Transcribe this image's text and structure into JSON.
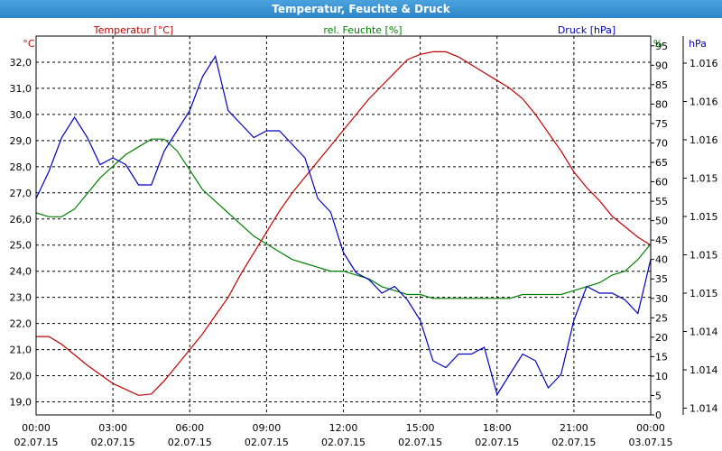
{
  "window": {
    "title": "Temperatur, Feuchte & Druck"
  },
  "colors": {
    "temperature": "#c00000",
    "humidity": "#008000",
    "pressure": "#0000c0",
    "grid": "#000000",
    "text": "#000000"
  },
  "chart_data": {
    "type": "line",
    "title": "Temperatur, Feuchte & Druck",
    "xlim": [
      0,
      24
    ],
    "x_ticks": [
      {
        "time": "00:00",
        "date": "02.07.15"
      },
      {
        "time": "03:00",
        "date": "02.07.15"
      },
      {
        "time": "06:00",
        "date": "02.07.15"
      },
      {
        "time": "09:00",
        "date": "02.07.15"
      },
      {
        "time": "12:00",
        "date": "02.07.15"
      },
      {
        "time": "15:00",
        "date": "02.07.15"
      },
      {
        "time": "18:00",
        "date": "02.07.15"
      },
      {
        "time": "21:00",
        "date": "02.07.15"
      },
      {
        "time": "00:00",
        "date": "03.07.15"
      }
    ],
    "axes": {
      "left": {
        "label": "Temperatur [°C]",
        "unit": "°C",
        "ylim": [
          18.5,
          33.0
        ],
        "ticks": [
          "19,0",
          "20,0",
          "21,0",
          "22,0",
          "23,0",
          "24,0",
          "25,0",
          "26,0",
          "27,0",
          "28,0",
          "29,0",
          "30,0",
          "31,0",
          "32,0"
        ]
      },
      "mid": {
        "label": "rel. Feuchte [%]",
        "unit": "%",
        "ylim": [
          0,
          97.5
        ],
        "ticks": [
          "0",
          "5",
          "10",
          "15",
          "20",
          "25",
          "30",
          "35",
          "40",
          "45",
          "50",
          "55",
          "60",
          "65",
          "70",
          "75",
          "80",
          "85",
          "90",
          "95"
        ]
      },
      "right": {
        "label": "Druck [hPa]",
        "unit": "hPa",
        "ylim": [
          1013.7,
          1016.5
        ],
        "ticks": [
          "1.014",
          "1.014",
          "1.014",
          "1.015",
          "1.015",
          "1.015",
          "1.015",
          "1.016",
          "1.016",
          "1.016"
        ]
      }
    },
    "grid": true,
    "series": [
      {
        "name": "Temperatur [°C]",
        "axis": "left",
        "x": [
          0,
          0.5,
          1,
          1.5,
          2,
          3,
          4,
          4.5,
          5,
          5.5,
          6,
          6.5,
          7,
          7.5,
          8,
          8.5,
          9,
          9.5,
          10,
          10.5,
          11,
          11.5,
          12,
          12.5,
          13,
          13.5,
          14,
          14.5,
          15,
          15.5,
          16,
          16.5,
          17,
          17.5,
          18,
          18.5,
          19,
          19.5,
          20,
          20.5,
          21,
          21.5,
          22,
          22.5,
          23,
          23.5,
          24
        ],
        "values": [
          21.5,
          21.5,
          21.2,
          20.8,
          20.4,
          19.7,
          19.25,
          19.3,
          19.8,
          20.4,
          21.0,
          21.6,
          22.3,
          23.0,
          23.9,
          24.7,
          25.5,
          26.3,
          27.0,
          27.6,
          28.2,
          28.8,
          29.4,
          30.0,
          30.6,
          31.1,
          31.6,
          32.1,
          32.3,
          32.4,
          32.4,
          32.2,
          31.9,
          31.6,
          31.3,
          31.0,
          30.6,
          30.0,
          29.3,
          28.6,
          27.8,
          27.2,
          26.7,
          26.1,
          25.7,
          25.3,
          25.0
        ]
      },
      {
        "name": "rel. Feuchte [%]",
        "axis": "mid",
        "x": [
          0,
          0.5,
          1,
          1.5,
          2,
          2.5,
          3,
          3.5,
          4,
          4.5,
          5,
          5.5,
          6,
          6.5,
          7,
          7.5,
          8,
          8.5,
          9,
          9.5,
          10,
          10.5,
          11,
          11.5,
          12,
          12.5,
          13,
          13.5,
          14,
          14.5,
          15,
          15.5,
          16,
          16.5,
          17,
          17.5,
          18,
          18.5,
          19,
          19.5,
          20,
          20.5,
          21,
          21.5,
          22,
          22.5,
          23,
          23.5,
          24
        ],
        "values": [
          52,
          51,
          51,
          53,
          57,
          61,
          64,
          67,
          69,
          71,
          71,
          68,
          63,
          58,
          55,
          52,
          49,
          46,
          44,
          42,
          40,
          39,
          38,
          37,
          37,
          36,
          35,
          33,
          32,
          31,
          31,
          30,
          30,
          30,
          30,
          30,
          30,
          30,
          31,
          31,
          31,
          31,
          32,
          33,
          34,
          36,
          37,
          40,
          44
        ]
      },
      {
        "name": "Druck [hPa]",
        "axis": "right",
        "x": [
          0,
          0.5,
          1,
          1.5,
          2,
          2.5,
          3,
          3.5,
          4,
          4.5,
          5,
          5.5,
          6,
          6.5,
          7,
          7.5,
          8,
          8.5,
          9,
          9.5,
          10,
          10.5,
          11,
          11.5,
          12,
          12.5,
          13,
          13.5,
          14,
          14.5,
          15,
          15.5,
          16,
          16.5,
          17,
          17.5,
          18,
          18.5,
          19,
          19.5,
          20,
          20.5,
          21,
          21.5,
          22,
          22.5,
          23,
          23.5,
          24
        ],
        "values": [
          1015.3,
          1015.5,
          1015.75,
          1015.9,
          1015.75,
          1015.55,
          1015.6,
          1015.55,
          1015.4,
          1015.4,
          1015.65,
          1015.8,
          1015.95,
          1016.2,
          1016.35,
          1015.95,
          1015.85,
          1015.75,
          1015.8,
          1015.8,
          1015.7,
          1015.6,
          1015.3,
          1015.2,
          1014.9,
          1014.75,
          1014.7,
          1014.6,
          1014.65,
          1014.55,
          1014.4,
          1014.1,
          1014.05,
          1014.15,
          1014.15,
          1014.2,
          1013.85,
          1014.0,
          1014.15,
          1014.1,
          1013.9,
          1014.0,
          1014.4,
          1014.65,
          1014.6,
          1014.6,
          1014.55,
          1014.45,
          1014.85
        ]
      }
    ]
  }
}
